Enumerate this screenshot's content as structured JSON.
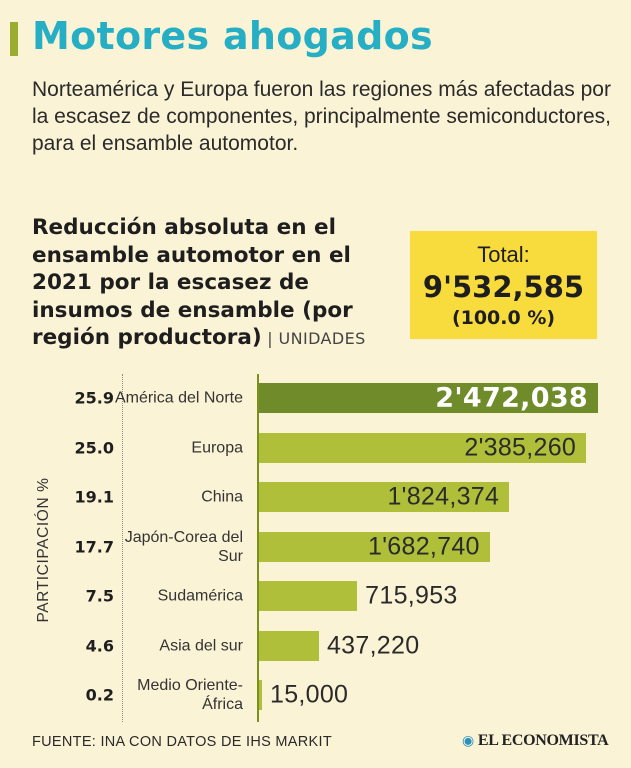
{
  "header": {
    "title": "Motores ahogados",
    "subtitle": "Norteamérica y Europa fueron las regiones más afectadas por la escasez de componentes, principalmente semiconductores, para el ensamble automotor."
  },
  "chart_heading": {
    "text": "Reducción absoluta en el ensamble automotor en el 2021 por la escasez de insumos de ensamble (por región productora)",
    "separator": " | ",
    "units": "UNIDADES"
  },
  "total": {
    "label": "Total:",
    "value": "9'532,585",
    "percent": "(100.0 %)"
  },
  "chart_data": {
    "type": "bar",
    "orientation": "horizontal",
    "title": "Reducción absoluta en el ensamble automotor en el 2021 por la escasez de insumos de ensamble (por región productora)",
    "units": "UNIDADES",
    "secondary_axis_label": "PARTICIPACIÓN %",
    "xlim": [
      0,
      2472038
    ],
    "rows": [
      {
        "region": "América del Norte",
        "value": 2472038,
        "value_label": "2'472,038",
        "share": "25.9",
        "highlight": true
      },
      {
        "region": "Europa",
        "value": 2385260,
        "value_label": "2'385,260",
        "share": "25.0",
        "highlight": false
      },
      {
        "region": "China",
        "value": 1824374,
        "value_label": "1'824,374",
        "share": "19.1",
        "highlight": false
      },
      {
        "region": "Japón-Corea del Sur",
        "value": 1682740,
        "value_label": "1'682,740",
        "share": "17.7",
        "highlight": false
      },
      {
        "region": "Sudamérica",
        "value": 715953,
        "value_label": "715,953",
        "share": "7.5",
        "highlight": false
      },
      {
        "region": "Asia del sur",
        "value": 437220,
        "value_label": "437,220",
        "share": "4.6",
        "highlight": false
      },
      {
        "region": "Medio Oriente-África",
        "value": 15000,
        "value_label": "15,000",
        "share": "0.2",
        "highlight": false
      }
    ]
  },
  "footer": {
    "source": "FUENTE: INA CON DATOS DE IHS MARKIT",
    "brand": "EL ECONOMISTA",
    "brand_icon": "globe-icon"
  }
}
